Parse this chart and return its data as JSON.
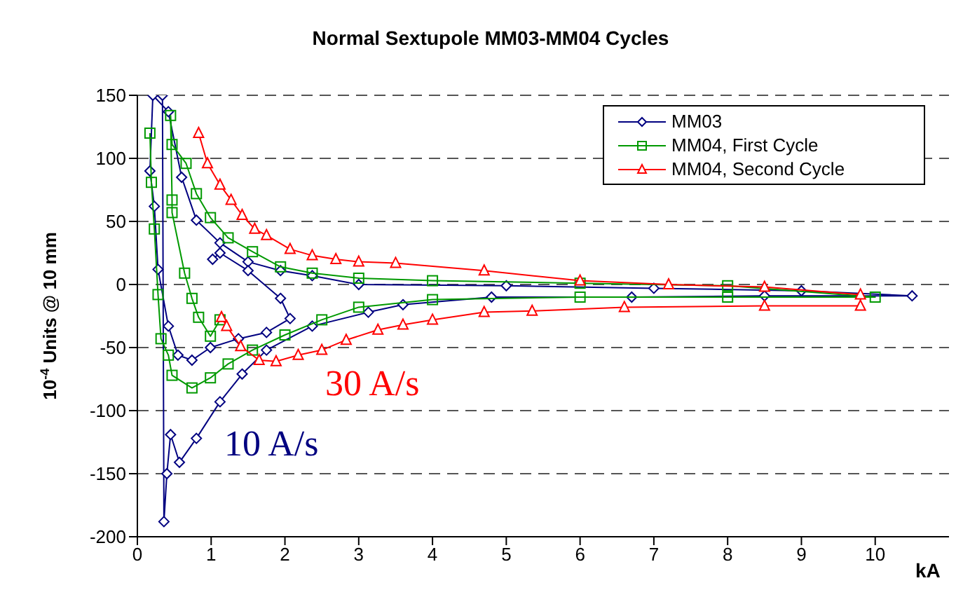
{
  "chart_data": {
    "type": "line",
    "title": "Normal Sextupole  MM03-MM04 Cycles",
    "ylabel": "10$^{-4}$ Units @ 10 mm",
    "xlim": [
      0,
      11
    ],
    "xticks": [
      0,
      1,
      2,
      3,
      4,
      5,
      6,
      7,
      8,
      9,
      10
    ],
    "ylim": [
      -200,
      150
    ],
    "yticks": [
      -200,
      -150,
      -100,
      -50,
      0,
      50,
      100,
      150
    ],
    "grid": "y",
    "legend": "top right",
    "line_style": "solid",
    "annotations": [
      "30 A/s",
      "10 A/s",
      "kA"
    ],
    "series": [
      {
        "name": "MM03",
        "color": "#000080",
        "marker": "diamond",
        "x": [
          0.34,
          0.36,
          0.4,
          0.45,
          0.57,
          0.8,
          1.12,
          1.42,
          1.75,
          2.37,
          3.13,
          3.6,
          4.8,
          6.7,
          8.5,
          10.5,
          9,
          7,
          5,
          3,
          2.37,
          1.94,
          1.5,
          1.12,
          0.8,
          0.6,
          0.42,
          0.21,
          0.17,
          0.23,
          0.28,
          0.42,
          0.55,
          0.74,
          0.99,
          1.37,
          1.75,
          2.07,
          1.94,
          1.5,
          1.12,
          1.02
        ],
        "values": [
          150,
          -188,
          -150,
          -119,
          -141,
          -122,
          -93,
          -71,
          -52,
          -33,
          -22,
          -16,
          -10,
          -10,
          -9,
          -9,
          -5,
          -3,
          -1,
          0,
          7,
          11,
          18,
          33,
          51,
          85,
          137,
          150,
          90,
          62,
          12,
          -33,
          -56,
          -60,
          -50,
          -43,
          -38,
          -27,
          -11,
          11,
          25,
          20
        ]
      },
      {
        "name": "MM04, First Cycle",
        "color": "#009900",
        "marker": "square",
        "x": [
          0.17,
          0.19,
          0.23,
          0.28,
          0.32,
          0.42,
          0.47,
          0.74,
          0.99,
          1.23,
          1.56,
          2,
          2.5,
          3,
          4,
          6,
          8,
          10,
          8,
          6,
          4,
          3,
          2.37,
          1.94,
          1.56,
          1.23,
          0.99,
          0.8,
          0.66,
          0.47,
          0.45,
          0.47,
          0.47,
          0.64,
          0.74,
          0.83,
          0.99,
          1.12
        ],
        "values": [
          120,
          81,
          44,
          -8,
          -43,
          -56,
          -72,
          -82,
          -74,
          -63,
          -52,
          -40,
          -28,
          -18,
          -12,
          -10,
          -10,
          -10,
          -1,
          1,
          3,
          5,
          9,
          14,
          26,
          37,
          53,
          72,
          96,
          111,
          134,
          67,
          57,
          9,
          -11,
          -26,
          -41,
          -28
        ]
      },
      {
        "name": "MM04, Second Cycle",
        "color": "#ff0000",
        "marker": "triangle",
        "x": [
          0.83,
          0.95,
          1.12,
          1.27,
          1.42,
          1.59,
          1.75,
          2.07,
          2.37,
          2.69,
          3,
          3.5,
          4.7,
          6,
          7.2,
          8.5,
          9.8,
          9.8,
          8.5,
          6.6,
          5.35,
          4.7,
          4,
          3.6,
          3.26,
          2.83,
          2.5,
          2.18,
          1.88,
          1.65,
          1.4,
          1.21,
          1.14
        ],
        "values": [
          120,
          96,
          79,
          67,
          55,
          44,
          39,
          28,
          23,
          20,
          18,
          17,
          11,
          3,
          0,
          -2,
          -8,
          -17,
          -17,
          -18,
          -21,
          -22,
          -28,
          -32,
          -36,
          -44,
          -52,
          -56,
          -61,
          -60,
          -49,
          -33,
          -26
        ]
      }
    ]
  }
}
